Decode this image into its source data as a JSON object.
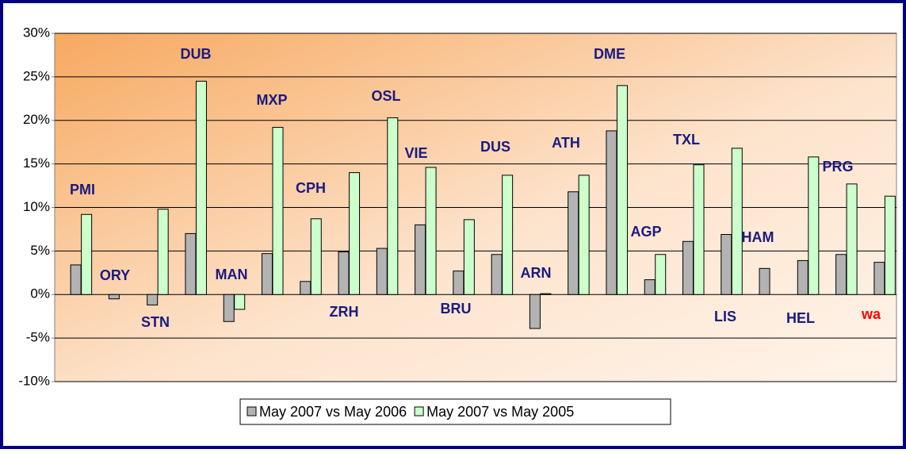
{
  "chart_data": {
    "type": "bar",
    "categories": [
      "PMI",
      "ORY",
      "STN",
      "DUB",
      "MAN",
      "MXP",
      "CPH",
      "ZRH",
      "OSL",
      "VIE",
      "BRU",
      "DUS",
      "ARN",
      "ATH",
      "DME",
      "AGP",
      "TXL",
      "LIS",
      "HAM",
      "HEL",
      "PRG",
      "wa"
    ],
    "category_colors": [
      "#1a1a80",
      "#1a1a80",
      "#1a1a80",
      "#1a1a80",
      "#1a1a80",
      "#1a1a80",
      "#1a1a80",
      "#1a1a80",
      "#1a1a80",
      "#1a1a80",
      "#1a1a80",
      "#1a1a80",
      "#1a1a80",
      "#1a1a80",
      "#1a1a80",
      "#1a1a80",
      "#1a1a80",
      "#1a1a80",
      "#1a1a80",
      "#1a1a80",
      "#1a1a80",
      "#ff0000"
    ],
    "series": [
      {
        "name": "May 2007 vs May 2006",
        "color": "#b3b3b3",
        "values": [
          3.4,
          -0.5,
          -1.2,
          7.0,
          -3.1,
          4.7,
          1.5,
          4.9,
          5.3,
          8.0,
          2.7,
          4.6,
          -3.9,
          11.8,
          18.8,
          1.7,
          6.1,
          6.9,
          3.0,
          3.9,
          4.6,
          3.7
        ]
      },
      {
        "name": "May 2007 vs May 2005",
        "color": "#ccffcc",
        "values": [
          9.2,
          null,
          9.8,
          24.5,
          -1.7,
          19.2,
          8.7,
          14.0,
          20.3,
          14.6,
          8.6,
          13.7,
          0.1,
          13.7,
          24.0,
          4.6,
          14.9,
          16.8,
          null,
          15.8,
          12.7,
          11.3
        ]
      }
    ],
    "ylim": [
      -10,
      30
    ],
    "yticks": [
      {
        "value": -10,
        "label": "-10%"
      },
      {
        "value": -5,
        "label": "-5%"
      },
      {
        "value": 0,
        "label": "0%"
      },
      {
        "value": 5,
        "label": "5%"
      },
      {
        "value": 10,
        "label": "10%"
      },
      {
        "value": 15,
        "label": "15%"
      },
      {
        "value": 20,
        "label": "20%"
      },
      {
        "value": 25,
        "label": "25%"
      },
      {
        "value": 30,
        "label": "30%"
      }
    ],
    "grid": true,
    "legend": "bottom"
  }
}
